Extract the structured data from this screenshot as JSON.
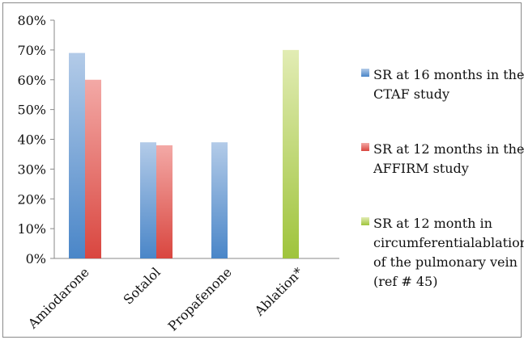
{
  "chart_data": {
    "type": "bar",
    "categories": [
      "Amiodarone",
      "Sotalol",
      "Propafenone",
      "Ablation*"
    ],
    "ylim": [
      0,
      0.8
    ],
    "yticks": [
      "0%",
      "10%",
      "20%",
      "30%",
      "40%",
      "50%",
      "60%",
      "70%",
      "80%"
    ],
    "grid": false,
    "legend_position": "right",
    "series": [
      {
        "name": "SR at 16 months in the CTAF study",
        "legend_lines": [
          "SR at 16 months in the",
          "CTAF study"
        ],
        "color_top": "#b3cbe8",
        "color_bottom": "#4a86c8",
        "values": [
          0.69,
          0.39,
          0.39,
          null
        ]
      },
      {
        "name": "SR at 12 months in the AFFIRM study",
        "legend_lines": [
          "SR at 12 months in the",
          "AFFIRM study"
        ],
        "color_top": "#f3a9a6",
        "color_bottom": "#d9463f",
        "values": [
          0.6,
          0.38,
          null,
          null
        ]
      },
      {
        "name": "SR at 12 month in circumferentialablation of the pulmonary vein (ref # 45)",
        "legend_lines": [
          "SR at 12 month in",
          "circumferentialablation",
          "of the pulmonary vein",
          "(ref # 45)"
        ],
        "color_top": "#e2ecb4",
        "color_bottom": "#9fc43c",
        "values": [
          null,
          null,
          null,
          0.7
        ]
      }
    ]
  }
}
